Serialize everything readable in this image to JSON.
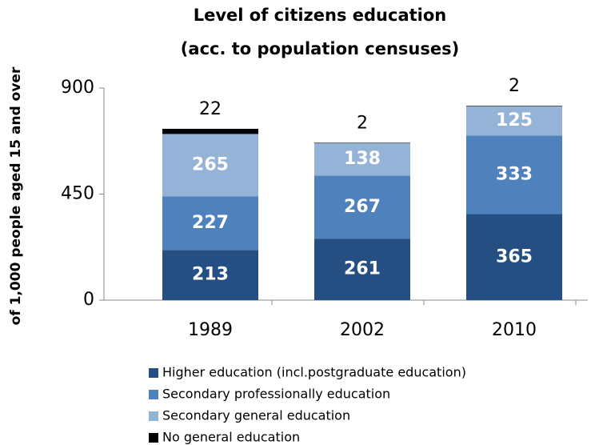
{
  "chart_data": {
    "type": "stacked_bar",
    "title": "Level of citizens education",
    "subtitle": "(acc. to population censuses)",
    "y_label": "of 1,000 people aged 15 and over",
    "categories": [
      "1989",
      "2002",
      "2010"
    ],
    "series": [
      {
        "name": "Higher education (incl.postgraduate education)",
        "color": "#254e82",
        "values": [
          213,
          261,
          365
        ]
      },
      {
        "name": "Secondary professionally education",
        "color": "#4f81bd",
        "values": [
          227,
          267,
          333
        ]
      },
      {
        "name": "Secondary general education",
        "color": "#95b3d7",
        "values": [
          265,
          138,
          125
        ]
      },
      {
        "name": "No general education",
        "color": "#000000",
        "values": [
          22,
          2,
          2
        ]
      }
    ],
    "ylim": [
      0,
      900
    ],
    "yticks": [
      0,
      450,
      900
    ],
    "grid": false,
    "legend": "bottom"
  }
}
